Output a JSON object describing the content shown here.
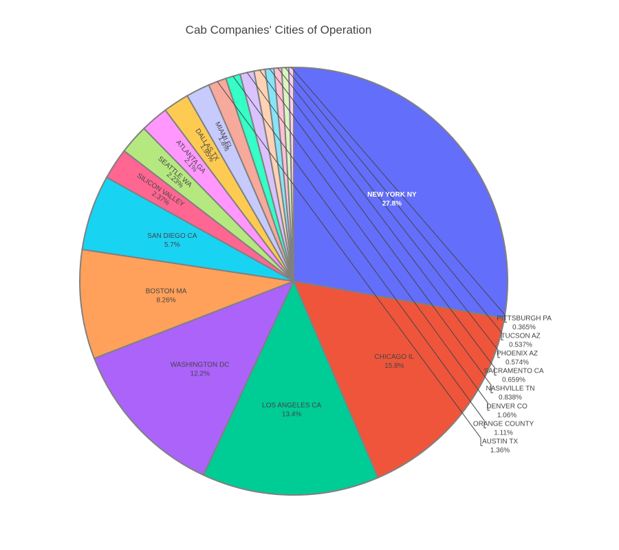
{
  "chart_data": {
    "type": "pie",
    "title": "Cab Companies' Cities of Operation",
    "slices": [
      {
        "label": "NEW YORK NY",
        "value": 27.8,
        "pct": "27.8%",
        "color": "#636efa"
      },
      {
        "label": "CHICAGO IL",
        "value": 15.8,
        "pct": "15.8%",
        "color": "#ef553b"
      },
      {
        "label": "LOS ANGELES CA",
        "value": 13.4,
        "pct": "13.4%",
        "color": "#00cc96"
      },
      {
        "label": "WASHINGTON DC",
        "value": 12.2,
        "pct": "12.2%",
        "color": "#ab63fa"
      },
      {
        "label": "BOSTON MA",
        "value": 8.26,
        "pct": "8.26%",
        "color": "#ffa15a"
      },
      {
        "label": "SAN DIEGO CA",
        "value": 5.7,
        "pct": "5.7%",
        "color": "#19d3f3"
      },
      {
        "label": "SILICON VALLEY",
        "value": 2.37,
        "pct": "2.37%",
        "color": "#ff6692"
      },
      {
        "label": "SEATTLE WA",
        "value": 2.23,
        "pct": "2.23%",
        "color": "#b6e880"
      },
      {
        "label": "ATLANTA GA",
        "value": 2.1,
        "pct": "2.1%",
        "color": "#ff97ff"
      },
      {
        "label": "DALLAS TX",
        "value": 1.95,
        "pct": "1.95%",
        "color": "#fecb52"
      },
      {
        "label": "MIAMI FL",
        "value": 1.8,
        "pct": "1.8%",
        "color": "#c6cafd"
      },
      {
        "label": "AUSTIN TX",
        "value": 1.36,
        "pct": "1.36%",
        "color": "#f7a99b"
      },
      {
        "label": "ORANGE COUNTY",
        "value": 1.11,
        "pct": "1.11%",
        "color": "#33ffc6"
      },
      {
        "label": "DENVER CO",
        "value": 1.06,
        "pct": "1.06%",
        "color": "#d9c2fd"
      },
      {
        "label": "NASHVILLE TN",
        "value": 0.838,
        "pct": "0.838%",
        "color": "#ffd2b5"
      },
      {
        "label": "SACRAMENTO CA",
        "value": 0.659,
        "pct": "0.659%",
        "color": "#85e5f8"
      },
      {
        "label": "PHOENIX AZ",
        "value": 0.574,
        "pct": "0.574%",
        "color": "#ffc1d3"
      },
      {
        "label": "TUCSON AZ",
        "value": 0.537,
        "pct": "0.537%",
        "color": "#dbf3c0"
      },
      {
        "label": "PITTSBURGH PA",
        "value": 0.365,
        "pct": "0.365%",
        "color": "#ffcbff"
      }
    ]
  }
}
